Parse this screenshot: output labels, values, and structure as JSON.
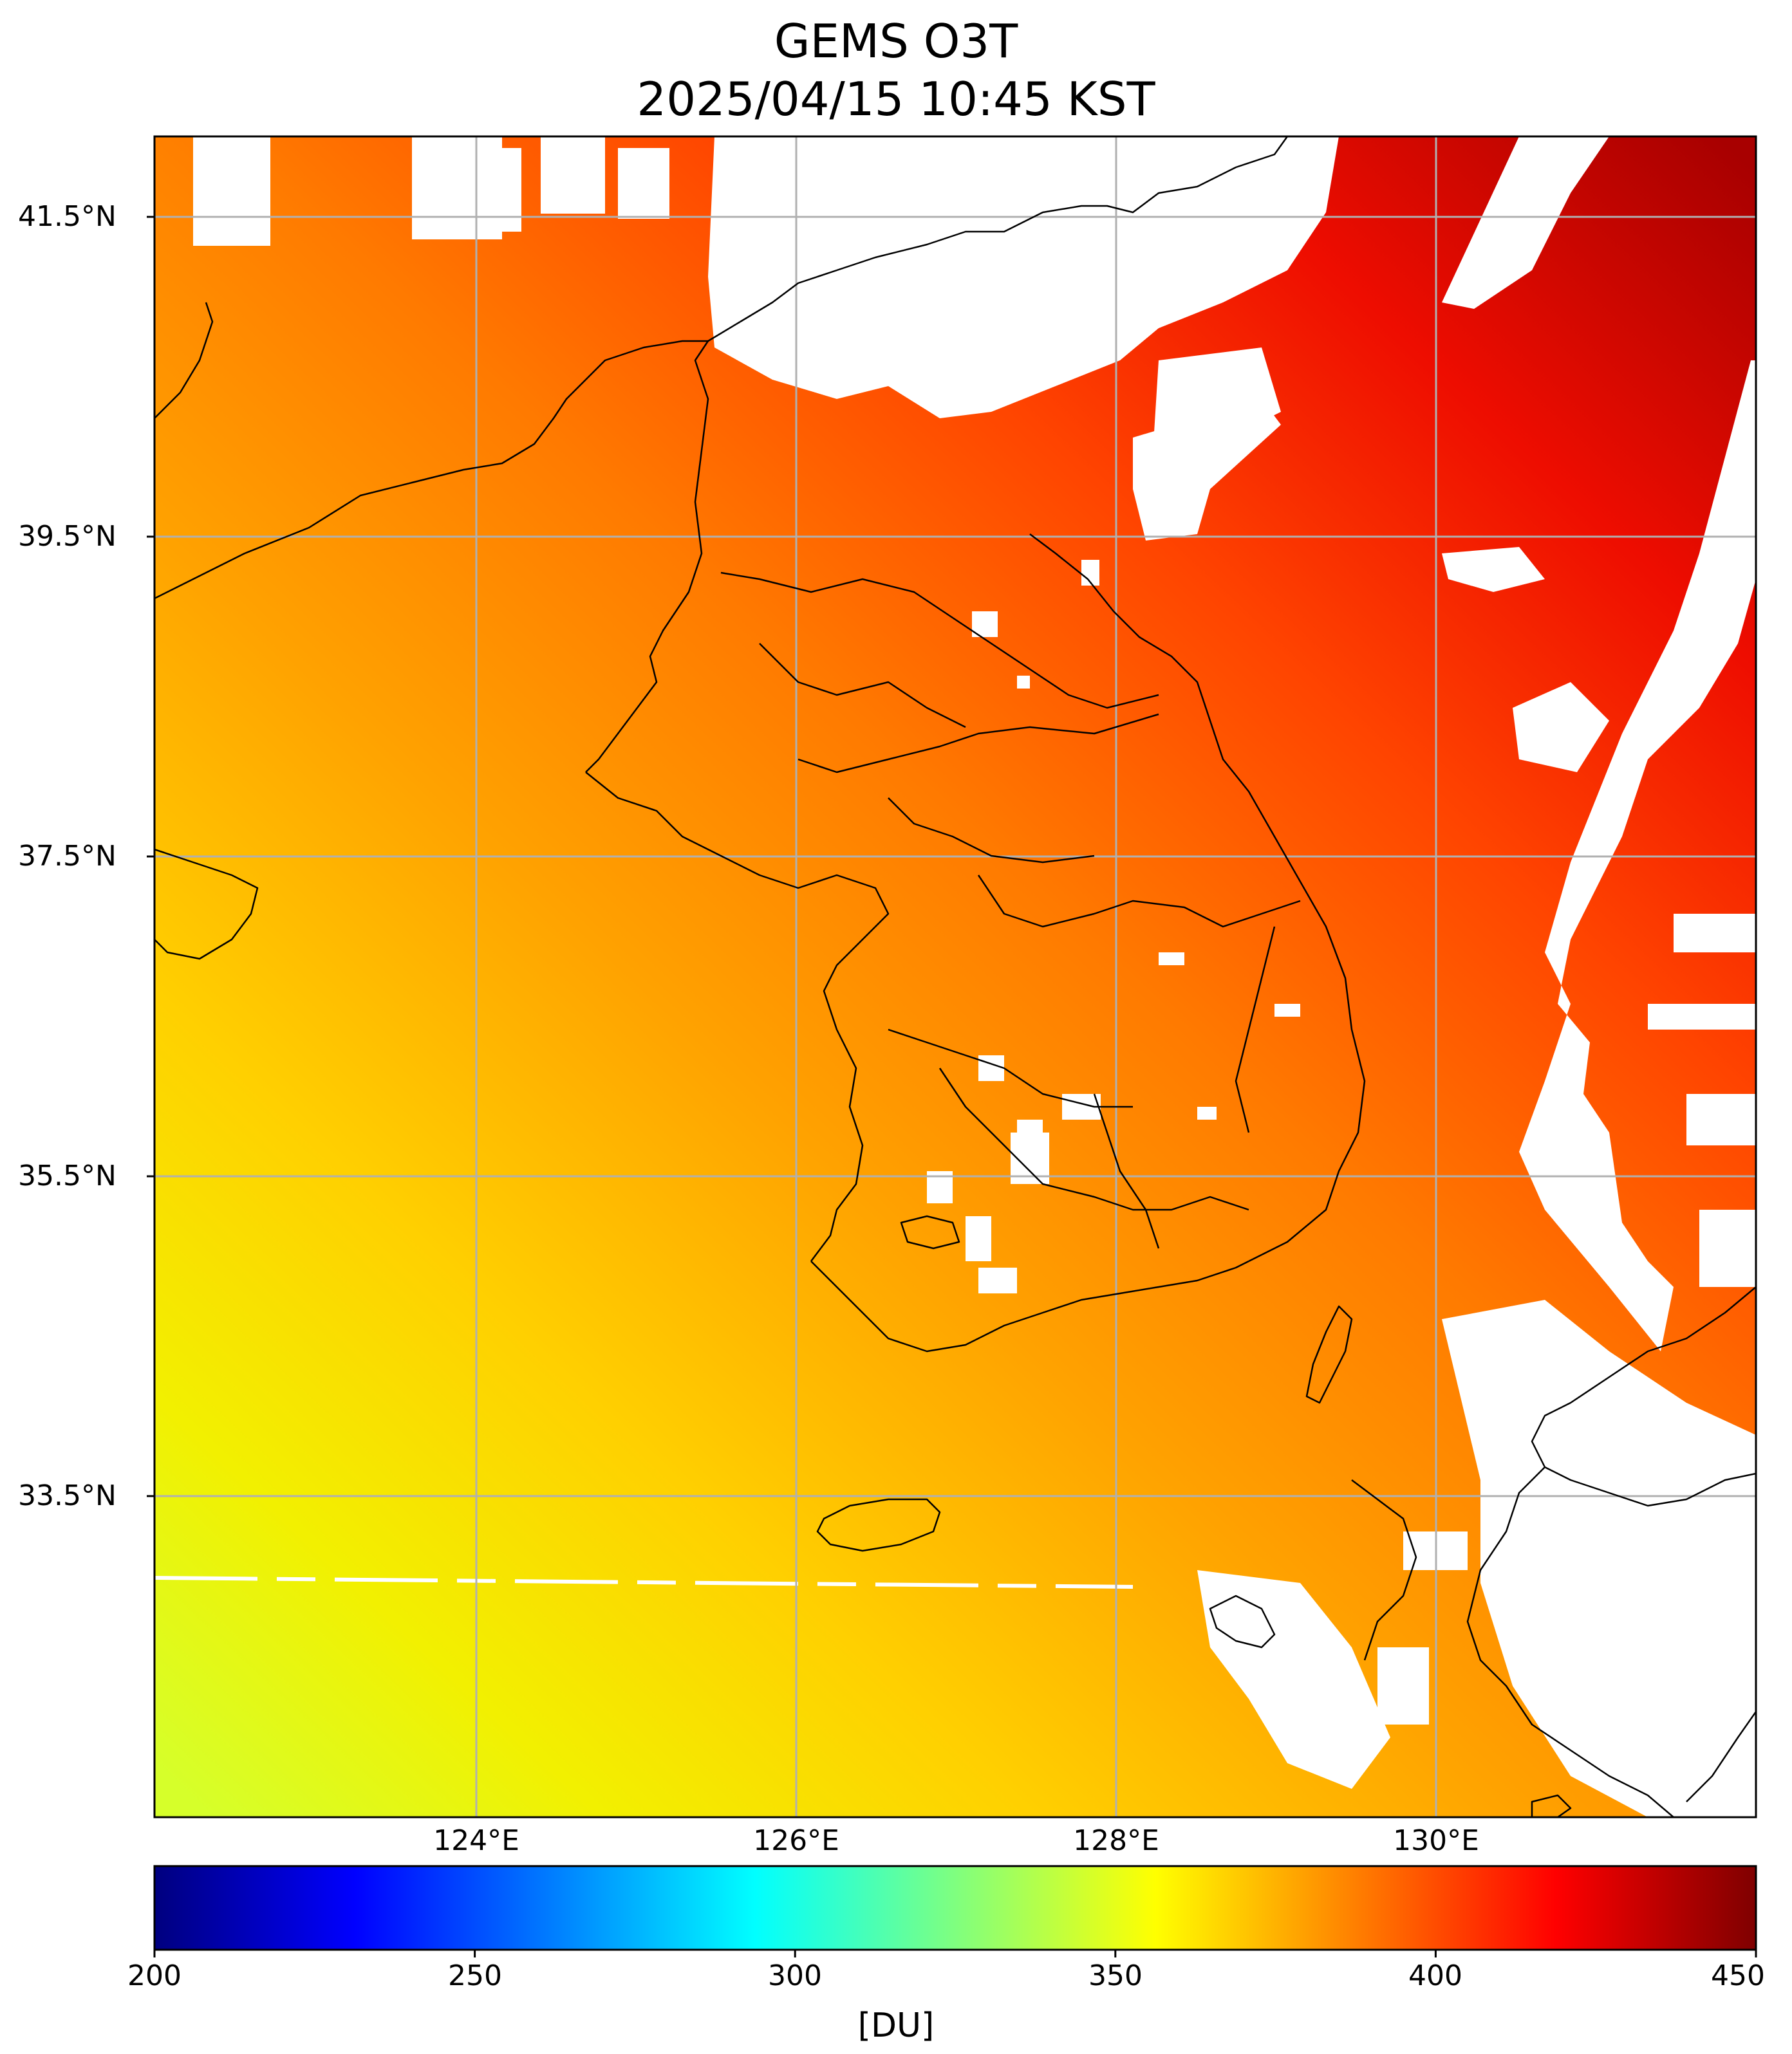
{
  "title_line1": "GEMS O3T",
  "title_line2": "2025/04/15 10:45 KST",
  "map": {
    "lat_ticks": [
      "41.5°N",
      "39.5°N",
      "37.5°N",
      "35.5°N",
      "33.5°N"
    ],
    "lon_ticks": [
      "124°E",
      "126°E",
      "128°E",
      "130°E"
    ],
    "lon_range": [
      122.0,
      132.0
    ],
    "lat_range": [
      31.75,
      42.25
    ],
    "gridlines": true,
    "coastlines": true,
    "missing_data_color": "#ffffff"
  },
  "colorbar": {
    "colormap": "jet",
    "ticks": [
      "200",
      "250",
      "300",
      "350",
      "400",
      "450"
    ],
    "unit": "[DU]",
    "range": [
      200,
      450
    ]
  },
  "chart_data": {
    "type": "heatmap",
    "title": "GEMS O3T 2025/04/15 10:45 KST",
    "variable": "total column ozone",
    "unit": "DU",
    "color_range": [
      200,
      450
    ],
    "x_ticks": [
      124,
      126,
      128,
      130
    ],
    "y_ticks": [
      41.5,
      39.5,
      37.5,
      35.5,
      33.5
    ],
    "xlim": [
      122.0,
      132.0
    ],
    "ylim": [
      31.75,
      42.25
    ],
    "approx_gradient": [
      {
        "lon": 122.5,
        "lat": 32.0,
        "value": 352
      },
      {
        "lon": 124.0,
        "lat": 34.0,
        "value": 372
      },
      {
        "lon": 124.0,
        "lat": 38.0,
        "value": 385
      },
      {
        "lon": 126.0,
        "lat": 37.0,
        "value": 392
      },
      {
        "lon": 128.0,
        "lat": 37.0,
        "value": 405
      },
      {
        "lon": 129.5,
        "lat": 36.0,
        "value": 415
      },
      {
        "lon": 131.0,
        "lat": 40.0,
        "value": 430
      },
      {
        "lon": 131.5,
        "lat": 41.5,
        "value": 445
      }
    ]
  }
}
